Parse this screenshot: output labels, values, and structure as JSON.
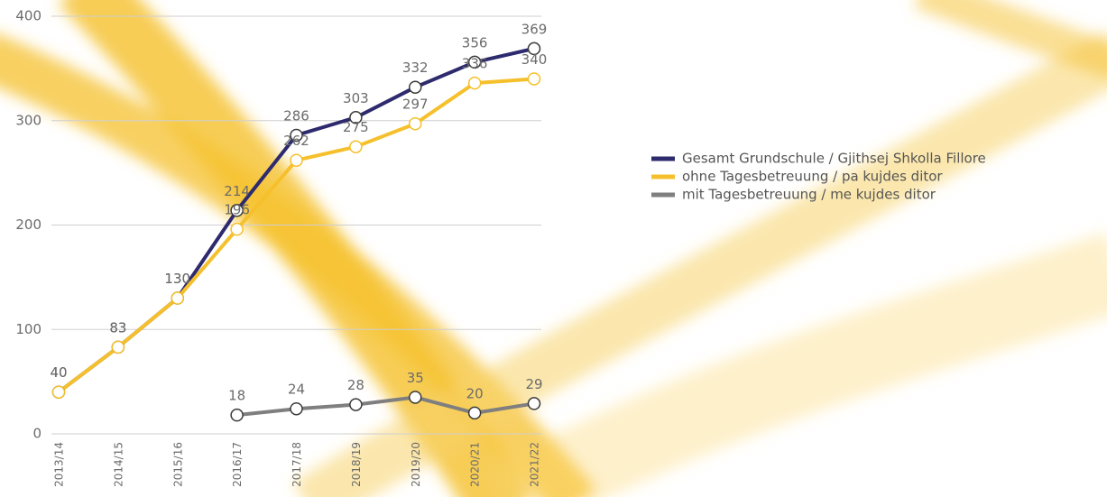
{
  "chart_data": {
    "type": "line",
    "categories": [
      "2013/14",
      "2014/15",
      "2015/16",
      "2016/17",
      "2017/18",
      "2018/19",
      "2019/20",
      "2020/21",
      "2021/22"
    ],
    "series": [
      {
        "name": "Gesamt Grundschule / Gjithsej Shkolla Fillore",
        "color": "#2e2a6e",
        "values": [
          40,
          83,
          130,
          214,
          286,
          303,
          332,
          356,
          369
        ]
      },
      {
        "name": "ohne Tagesbetreuung / pa kujdes ditor",
        "color": "#f5c02b",
        "values": [
          40,
          83,
          130,
          196,
          262,
          275,
          297,
          336,
          340
        ]
      },
      {
        "name": "mit Tagesbetreuung / me kujdes ditor",
        "color": "#7f7f7f",
        "values": [
          null,
          null,
          null,
          18,
          24,
          28,
          35,
          20,
          29
        ]
      }
    ],
    "ylim": [
      0,
      400
    ],
    "yticks": [
      0,
      100,
      200,
      300,
      400
    ],
    "grid": true
  }
}
